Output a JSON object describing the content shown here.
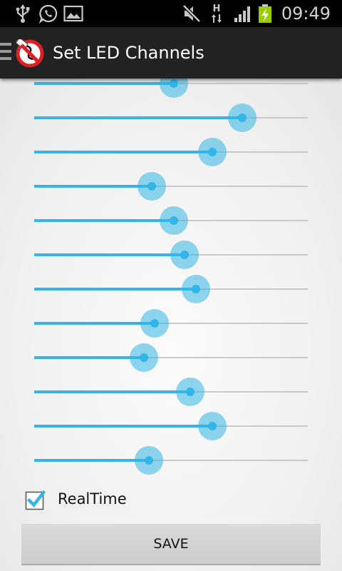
{
  "status_bar": {
    "time": "09:49",
    "left_icons": [
      "usb-icon",
      "whatsapp-icon",
      "gallery-icon"
    ],
    "right_icons": [
      "mute-icon",
      "hspa-data-icon",
      "signal-icon",
      "battery-charging-icon"
    ],
    "network_label": "H"
  },
  "action_bar": {
    "title": "Set LED Channels",
    "nav_icon": "drawer-icon",
    "app_icon": "led-off-logo-icon"
  },
  "sliders": [
    0.51,
    0.76,
    0.65,
    0.43,
    0.51,
    0.55,
    0.59,
    0.44,
    0.4,
    0.57,
    0.65,
    0.42
  ],
  "realtime": {
    "label": "RealTime",
    "checked": true
  },
  "save_button": {
    "label": "SAVE"
  },
  "colors": {
    "accent": "#33b5e5",
    "check": "#33b5e5",
    "status_bar": "#000000",
    "action_bar": "#222222",
    "battery": "#99cc00"
  }
}
